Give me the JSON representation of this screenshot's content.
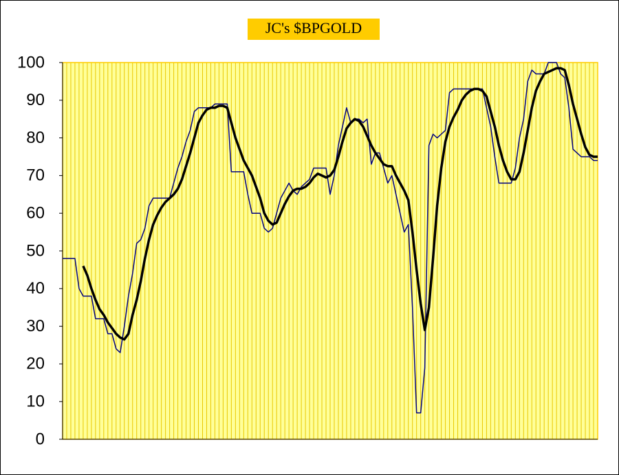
{
  "chart_data": {
    "type": "line",
    "title": "JC's $BPGOLD",
    "categories": [
      null,
      null,
      null,
      null,
      null,
      null,
      null,
      null,
      null,
      null,
      null,
      null,
      null,
      null,
      null,
      null,
      null,
      null,
      null,
      null,
      null,
      null,
      null,
      null,
      null,
      null,
      null,
      null,
      null,
      null,
      null,
      null,
      null,
      null,
      null,
      null,
      null,
      null,
      null,
      null,
      null,
      null,
      null,
      null,
      null,
      null,
      null,
      null,
      null,
      null,
      null,
      null,
      null,
      null,
      null,
      null,
      null,
      null,
      null,
      null,
      null,
      null,
      null,
      null,
      null,
      null,
      null,
      null,
      null,
      null,
      null,
      null,
      null,
      null,
      null,
      null,
      null,
      null,
      null,
      null,
      null,
      null,
      null,
      null,
      null,
      null,
      null,
      null,
      null,
      null,
      null,
      null,
      null,
      null,
      null,
      null,
      null,
      null,
      null,
      null,
      null,
      null,
      null,
      null,
      null,
      null,
      null,
      null,
      null,
      null,
      null,
      null,
      null,
      null,
      null,
      null,
      null,
      null,
      null,
      null,
      null,
      null,
      null,
      null,
      null,
      null,
      null,
      null,
      null,
      null,
      null
    ],
    "series": [
      {
        "color": "#000080",
        "width": 1.5,
        "values": [
          48,
          48,
          48,
          48,
          40,
          38,
          38,
          38,
          32,
          32,
          32,
          28,
          28,
          24,
          23,
          30,
          38,
          44,
          52,
          53,
          56,
          62,
          64,
          64,
          64,
          64,
          64,
          68,
          72,
          75,
          79,
          82,
          87,
          88,
          88,
          88,
          88,
          89,
          89,
          89,
          89,
          71,
          71,
          71,
          71,
          65,
          60,
          60,
          60,
          56,
          55,
          56,
          60,
          64,
          66,
          68,
          66,
          65,
          67,
          68,
          69,
          72,
          72,
          72,
          72,
          65,
          70,
          78,
          83,
          88,
          84,
          85,
          85,
          84,
          85,
          73,
          76,
          76,
          72,
          68,
          70,
          65,
          60,
          55,
          57,
          35,
          7,
          7,
          19,
          78,
          81,
          80,
          81,
          82,
          92,
          93,
          93,
          93,
          93,
          93,
          93,
          93,
          93,
          88,
          83,
          75,
          68,
          68,
          68,
          68,
          72,
          80,
          85,
          95,
          98,
          97,
          97,
          97,
          100,
          100,
          100,
          97,
          96,
          88,
          77,
          76,
          75,
          75,
          75,
          74,
          74
        ]
      },
      {
        "color": "#000000",
        "width": 3.5,
        "values": [
          null,
          null,
          null,
          null,
          null,
          46,
          43.5,
          40,
          37,
          34.5,
          33,
          31,
          29.5,
          28,
          27,
          26.5,
          28,
          33,
          37,
          42,
          48,
          53,
          57,
          59.5,
          61.5,
          63,
          64,
          65,
          66.5,
          69,
          72.5,
          76,
          80,
          84,
          86,
          87.5,
          88,
          88,
          88.5,
          88.5,
          88,
          84,
          80,
          77,
          74,
          72,
          70,
          67,
          64,
          60,
          58,
          57,
          57.5,
          60,
          62.5,
          64.5,
          66,
          66.5,
          66.5,
          67,
          68,
          69.5,
          70.5,
          70,
          69.5,
          70,
          71.5,
          75,
          79,
          82.5,
          84,
          85,
          84.5,
          83,
          80.5,
          78,
          76,
          74.5,
          73,
          72.5,
          72.5,
          70,
          68,
          66,
          63.5,
          55,
          45,
          36,
          29,
          35,
          48,
          62,
          72,
          79,
          83,
          85.5,
          87.5,
          90,
          91.5,
          92.5,
          93,
          93,
          92.5,
          91,
          87,
          83,
          78,
          74,
          71,
          69,
          69,
          71,
          76,
          82,
          88,
          92.5,
          95,
          97,
          97.5,
          98,
          98.5,
          98.5,
          98,
          94,
          89,
          85,
          81,
          77.5,
          75.5,
          75,
          75
        ]
      }
    ],
    "ylim": [
      0,
      100
    ],
    "yticks": [
      0,
      10,
      20,
      30,
      40,
      50,
      60,
      70,
      80,
      90,
      100
    ],
    "background": "#ffff99",
    "grid_color": "#e8c800",
    "title_background": "#ffcc00"
  }
}
